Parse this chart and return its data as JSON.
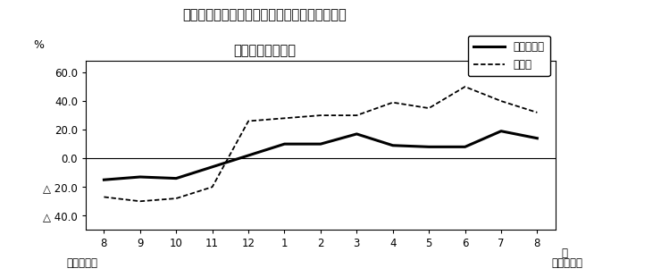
{
  "title_line1": "第２図　所定外労働時間　対前年同月比の推移",
  "title_line2": "（規模５人以上）",
  "x_labels": [
    "8",
    "9",
    "10",
    "11",
    "12",
    "1",
    "2",
    "3",
    "4",
    "5",
    "6",
    "7",
    "8"
  ],
  "x_label_bottom1": "平成２１年",
  "x_label_bottom2": "平成２２年",
  "x_label_month": "月",
  "y_label": "%",
  "y_ticks": [
    60.0,
    40.0,
    20.0,
    0.0,
    -20.0,
    -40.0
  ],
  "ylim": [
    -50,
    68
  ],
  "series_total": [
    -15.0,
    -13.0,
    -14.0,
    -6.0,
    2.0,
    10.0,
    10.0,
    17.0,
    9.0,
    8.0,
    8.0,
    19.0,
    14.0
  ],
  "series_mfg": [
    -27.0,
    -30.0,
    -28.0,
    -20.0,
    26.0,
    28.0,
    30.0,
    30.0,
    39.0,
    35.0,
    50.0,
    40.0,
    32.0
  ],
  "legend_total": "調査産業計",
  "legend_mfg": "製造業",
  "color": "#000000",
  "bg_color": "#ffffff",
  "title_fontsize": 10.5,
  "legend_fontsize": 8.5,
  "tick_fontsize": 8.5,
  "label_fontsize": 9
}
